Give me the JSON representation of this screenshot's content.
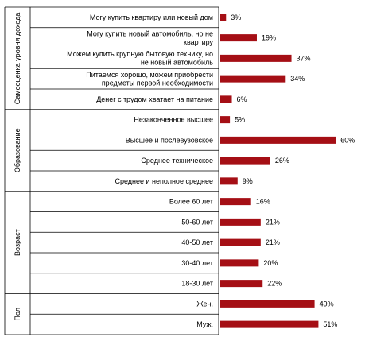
{
  "chart_data": {
    "type": "bar",
    "orientation": "horizontal",
    "bar_color": "#a50f15",
    "value_suffix": "%",
    "groups": [
      {
        "label": "Самооценка уровня дохода",
        "items": [
          {
            "label": "Могу купить квартиру или новый дом",
            "value": 3
          },
          {
            "label": "Могу купить новый автомобиль, но не квартиру",
            "value": 19
          },
          {
            "label": "Можем купить крупную бытовую технику, но не новый автомобиль",
            "value": 37
          },
          {
            "label": "Питаемся хорошо, можем приобрести предметы первой необходимости",
            "value": 34
          },
          {
            "label": "Денег с трудом хватает на питание",
            "value": 6
          }
        ]
      },
      {
        "label": "Образование",
        "items": [
          {
            "label": "Незаконченное высшее",
            "value": 5
          },
          {
            "label": "Высшее и послевузовское",
            "value": 60
          },
          {
            "label": "Среднее техническое",
            "value": 26
          },
          {
            "label": "Среднее и неполное среднее",
            "value": 9
          }
        ]
      },
      {
        "label": "Возраст",
        "items": [
          {
            "label": "Более 60 лет",
            "value": 16
          },
          {
            "label": "50-60 лет",
            "value": 21
          },
          {
            "label": "40-50 лет",
            "value": 21
          },
          {
            "label": "30-40 лет",
            "value": 20
          },
          {
            "label": "18-30 лет",
            "value": 22
          }
        ]
      },
      {
        "label": "Пол",
        "items": [
          {
            "label": "Жен.",
            "value": 49
          },
          {
            "label": "Муж.",
            "value": 51
          }
        ]
      }
    ]
  }
}
